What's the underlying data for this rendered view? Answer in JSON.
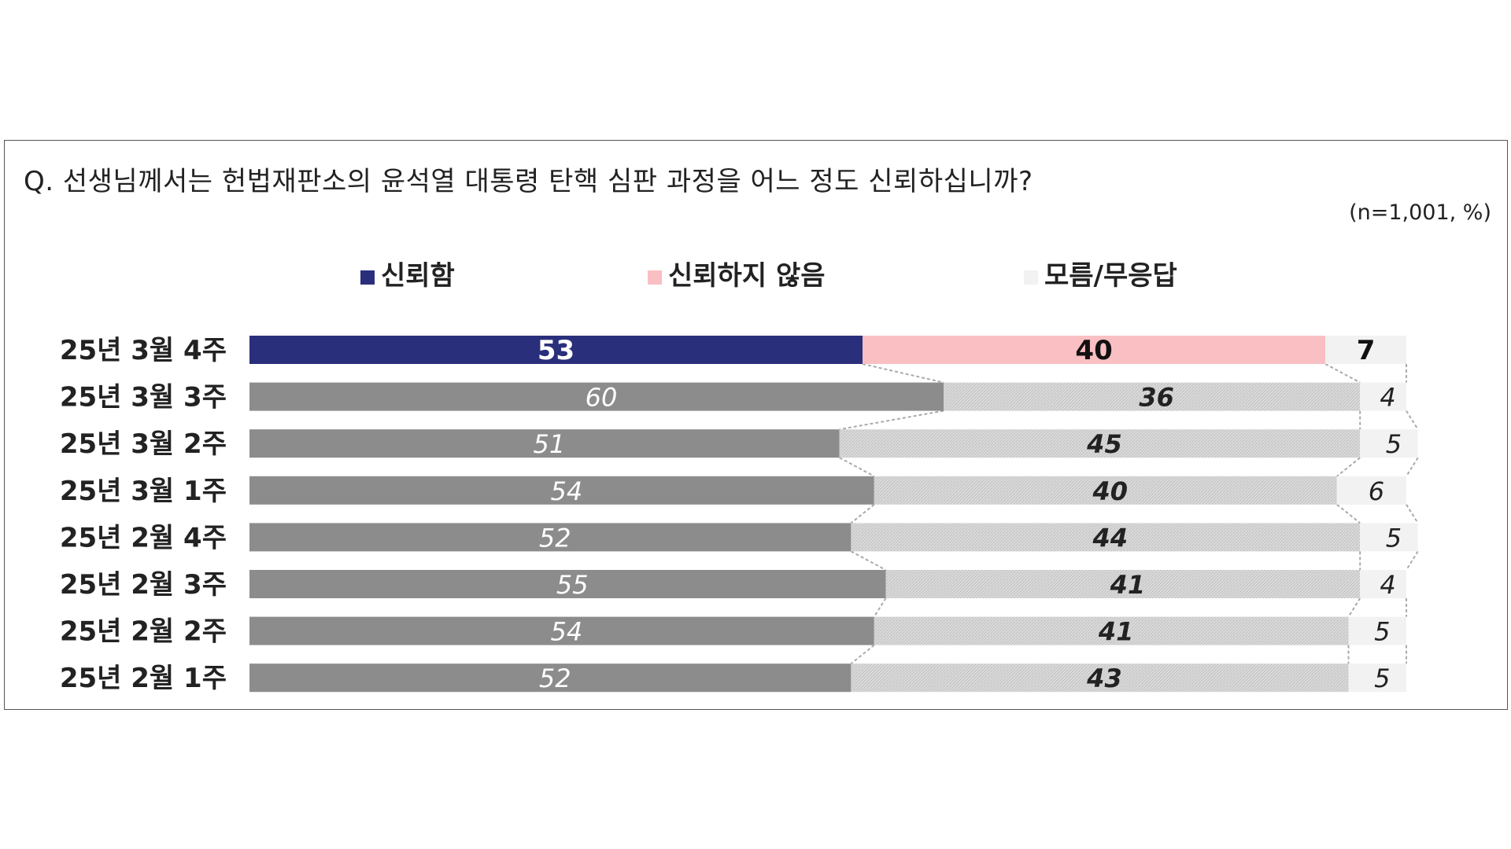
{
  "question": "Q. 선생님께서는 헌법재판소의 윤석열 대통령 탄핵 심판 과정을 어느 정도 신뢰하십니까?",
  "note": "(n=1,001,  %)",
  "colors": {
    "trust_current": "#2a2f7b",
    "distrust_current": "#f9bfc3",
    "unknown_current": "#f2f2f2",
    "trust_past": "#8c8c8c",
    "distrust_past": "#d6d6d6",
    "unknown_past": "#f2f2f2",
    "connector": "#aaaaaa"
  },
  "chart_data": {
    "type": "bar",
    "orientation": "horizontal",
    "stacked": true,
    "title": "Q. 선생님께서는 헌법재판소의 윤석열 대통령 탄핵 심판 과정을 어느 정도 신뢰하십니까?",
    "categories": [
      "25년 3월 4주",
      "25년 3월 3주",
      "25년 3월 2주",
      "25년 3월 1주",
      "25년 2월 4주",
      "25년 2월 3주",
      "25년 2월 2주",
      "25년 2월 1주"
    ],
    "series": [
      {
        "name": "신뢰함",
        "values": [
          53,
          60,
          51,
          54,
          52,
          55,
          54,
          52
        ]
      },
      {
        "name": "신뢰하지 않음",
        "values": [
          40,
          36,
          45,
          40,
          44,
          41,
          41,
          43
        ]
      },
      {
        "name": "모름/무응답",
        "values": [
          7,
          4,
          5,
          6,
          5,
          4,
          5,
          5
        ]
      }
    ],
    "xlim": [
      0,
      100
    ],
    "legend_position": "top",
    "grid": false
  }
}
